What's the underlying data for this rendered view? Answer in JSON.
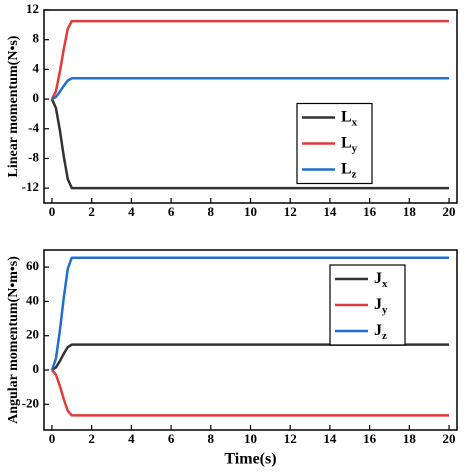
{
  "chart_data": [
    {
      "type": "line",
      "y_label": "Linear momentum(N•s)",
      "x": [
        0,
        0.2,
        0.4,
        0.6,
        0.8,
        1,
        20
      ],
      "series": [
        {
          "name": "Lx",
          "color": "#333333",
          "values": [
            0,
            -1.2,
            -4.2,
            -7.8,
            -10.8,
            -12,
            -12
          ]
        },
        {
          "name": "Ly",
          "color": "#e03a3a",
          "values": [
            0,
            1.05,
            3.7,
            6.8,
            9.5,
            10.5,
            10.5
          ]
        },
        {
          "name": "Lz",
          "color": "#1f6fd0",
          "values": [
            0,
            0.28,
            1,
            1.8,
            2.5,
            2.8,
            2.8
          ]
        }
      ],
      "xlim": [
        -0.4,
        20.4
      ],
      "xticks": [
        0,
        2,
        4,
        6,
        8,
        10,
        12,
        14,
        16,
        18,
        20
      ],
      "ylim": [
        -14,
        12
      ],
      "yticks": [
        -12,
        -8,
        -4,
        0,
        4,
        8,
        12
      ],
      "legend": "center right"
    },
    {
      "type": "line",
      "y_label": "Angular momentum(N•m•s)",
      "x_label": "Time(s)",
      "x": [
        0,
        0.2,
        0.4,
        0.6,
        0.8,
        1,
        20
      ],
      "series": [
        {
          "name": "Jx",
          "color": "#333333",
          "values": [
            0,
            1.5,
            5.2,
            9.6,
            13.4,
            14.8,
            14.8
          ]
        },
        {
          "name": "Jy",
          "color": "#e03a3a",
          "values": [
            0,
            -2.7,
            -9.3,
            -17.2,
            -23.9,
            -26.5,
            -26.5
          ]
        },
        {
          "name": "Jz",
          "color": "#1f6fd0",
          "values": [
            0,
            6.6,
            23,
            42.6,
            59.2,
            65.5,
            65.5
          ]
        }
      ],
      "xlim": [
        -0.4,
        20.4
      ],
      "xticks": [
        0,
        2,
        4,
        6,
        8,
        10,
        12,
        14,
        16,
        18,
        20
      ],
      "ylim": [
        -35,
        70
      ],
      "yticks": [
        -20,
        0,
        20,
        40,
        60
      ],
      "legend": "upper right"
    }
  ]
}
